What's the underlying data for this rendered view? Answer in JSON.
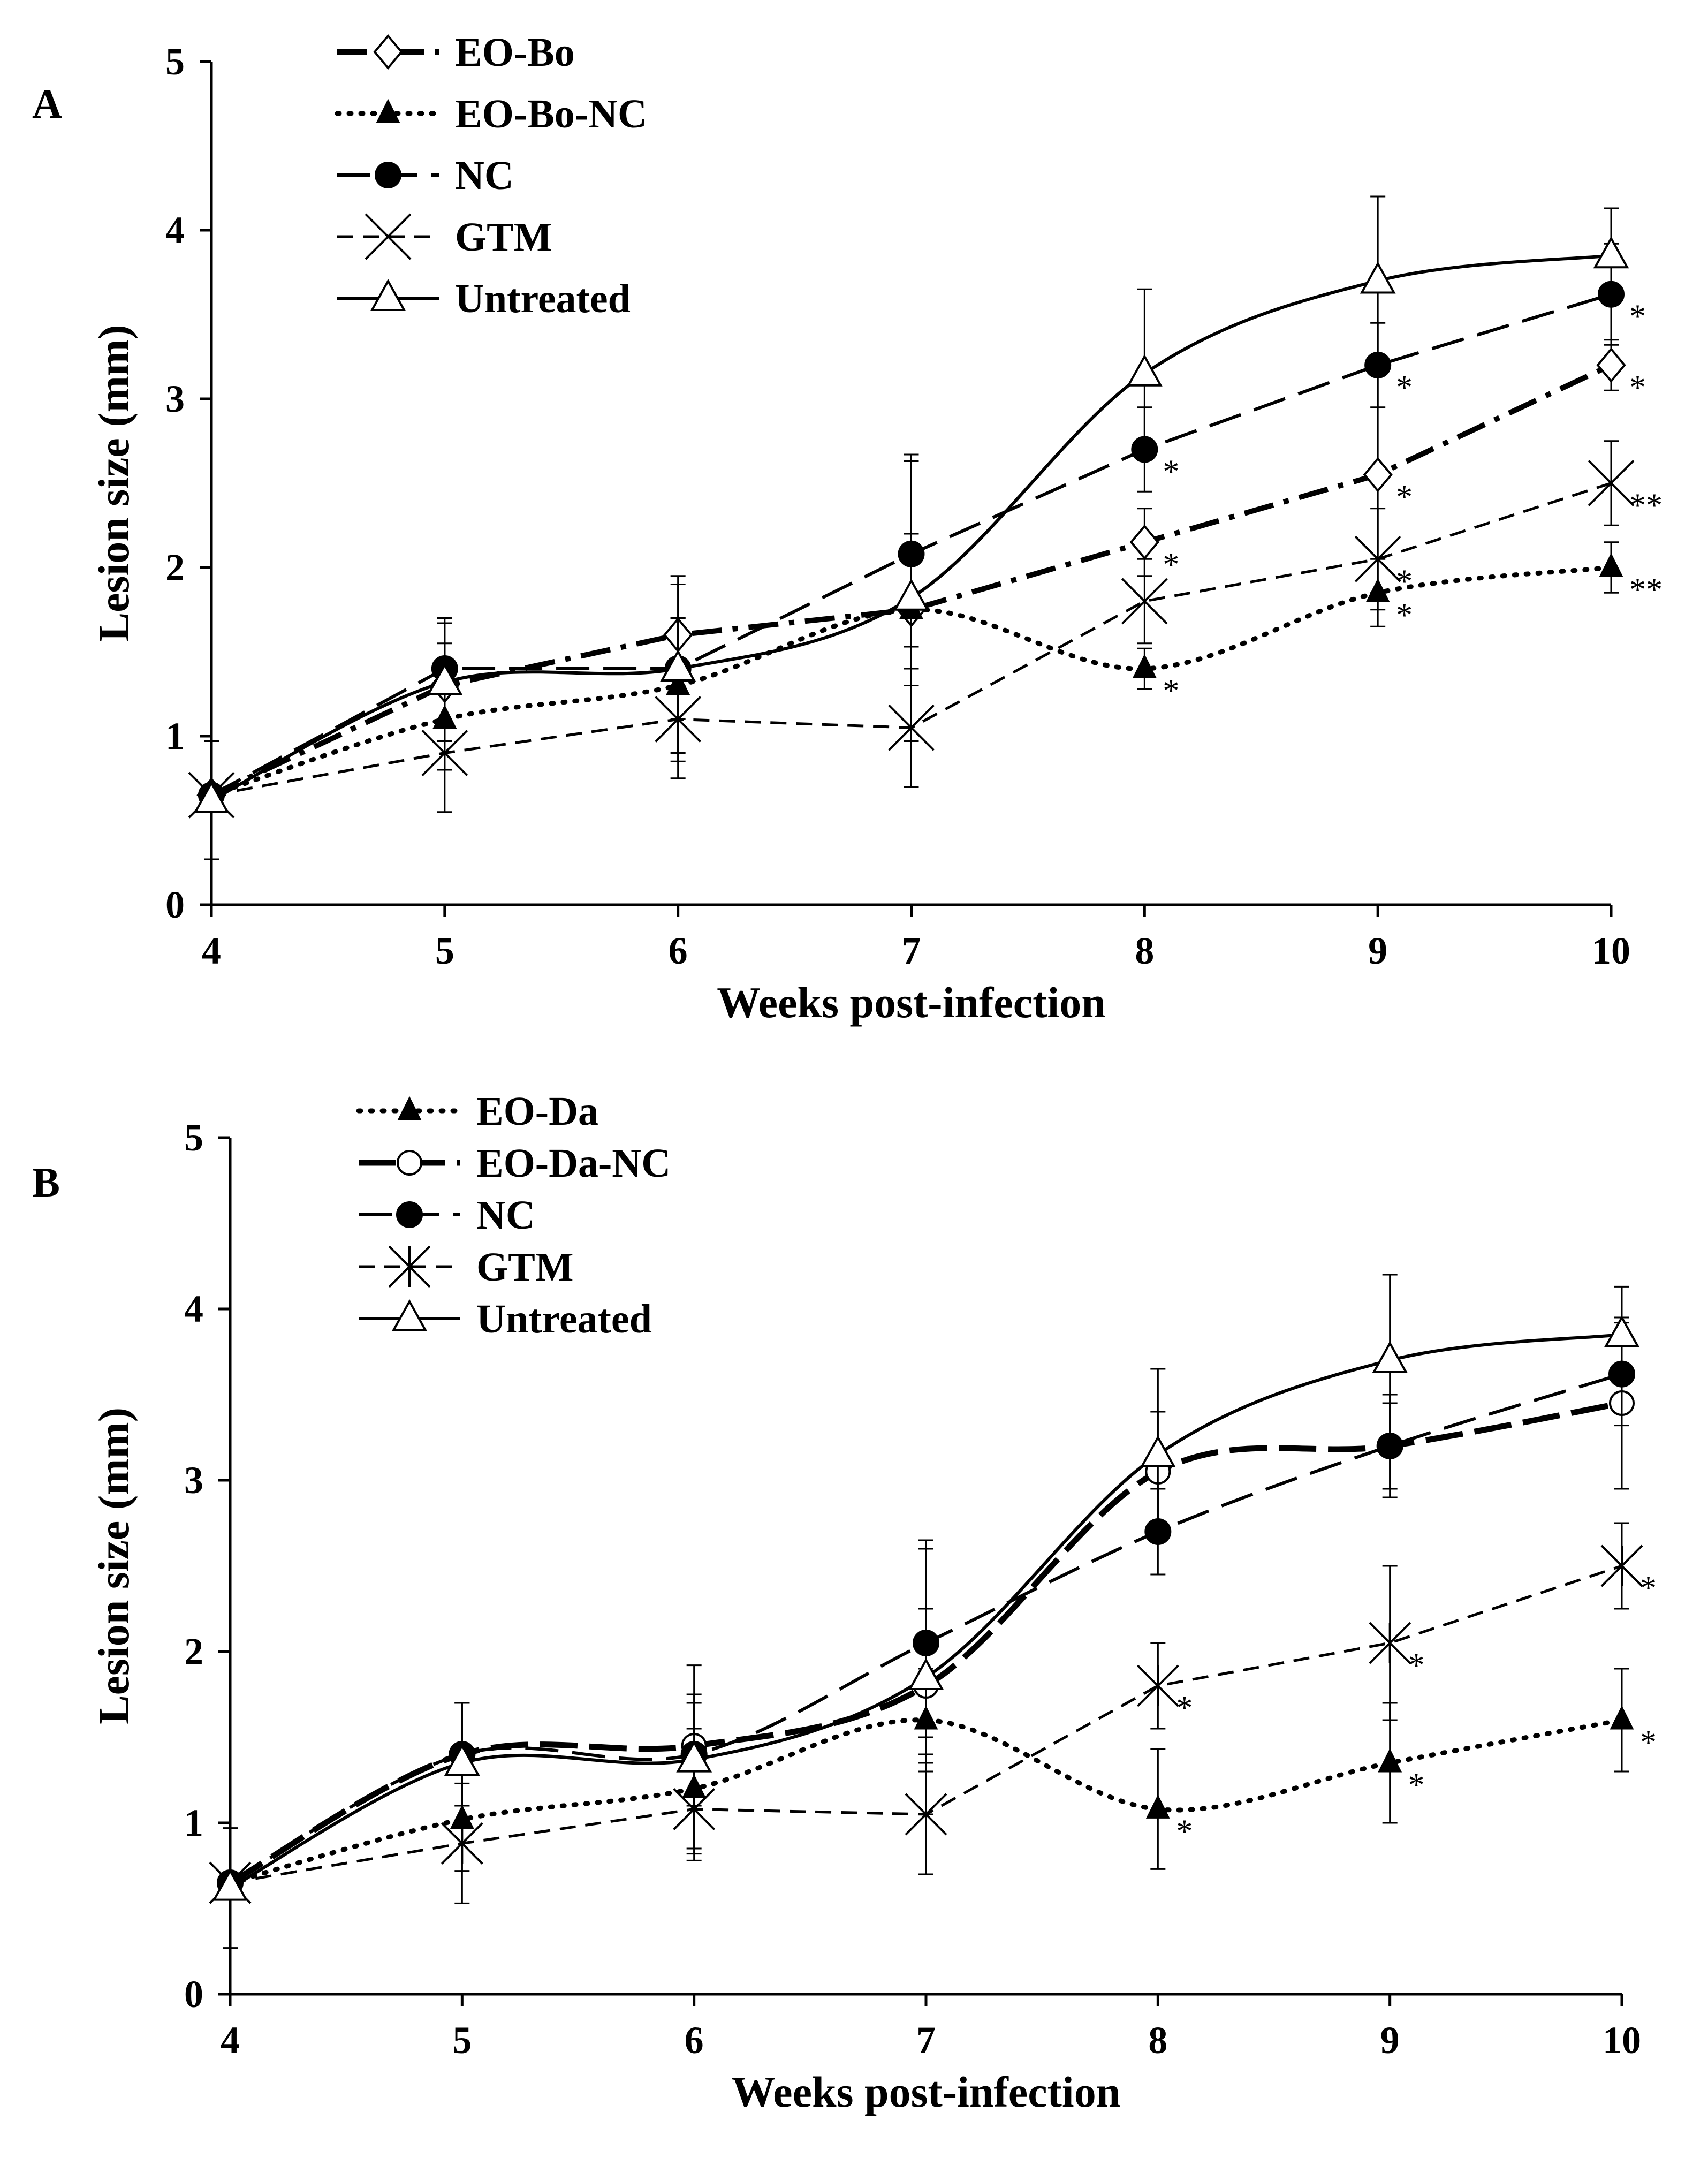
{
  "chart_data": [
    {
      "panel": "A",
      "type": "line",
      "xlabel": "Weeks post-infection",
      "ylabel": "Lesion size (mm)",
      "x": [
        4,
        5,
        6,
        7,
        8,
        9,
        10
      ],
      "xlim": [
        4,
        10
      ],
      "ylim": [
        0,
        5
      ],
      "xticks": [
        "4",
        "5",
        "6",
        "7",
        "8",
        "9",
        "10"
      ],
      "yticks": [
        "0",
        "1",
        "2",
        "3",
        "4",
        "5"
      ],
      "legend_position": "top-left",
      "series": [
        {
          "name": "EO-Bo",
          "marker": "diamond-open",
          "line": "dashdot-thick",
          "smooth": false,
          "values": [
            0.65,
            1.3,
            1.6,
            1.75,
            2.15,
            2.55,
            3.2
          ],
          "errors": [
            0.05,
            0.25,
            0.3,
            0.45,
            0.2,
            0.7,
            0.15
          ],
          "annotations": [
            "",
            "",
            "",
            "",
            "*",
            "*",
            "*"
          ]
        },
        {
          "name": "EO-Bo-NC",
          "marker": "triangle-filled",
          "line": "dotted",
          "smooth": true,
          "values": [
            0.65,
            1.1,
            1.3,
            1.75,
            1.4,
            1.85,
            2.0
          ],
          "errors": [
            0.05,
            0.3,
            0.4,
            0.45,
            0.12,
            0.2,
            0.15
          ],
          "annotations": [
            "",
            "",
            "",
            "",
            "*",
            "*",
            "**"
          ]
        },
        {
          "name": "NC",
          "marker": "circle-filled",
          "line": "longdash",
          "smooth": false,
          "values": [
            0.65,
            1.4,
            1.4,
            2.08,
            2.7,
            3.2,
            3.62
          ],
          "errors": [
            0.05,
            0.3,
            0.3,
            0.55,
            0.25,
            0.25,
            0.3
          ],
          "annotations": [
            "",
            "",
            "",
            "",
            "*",
            "*",
            "*"
          ]
        },
        {
          "name": "GTM",
          "marker": "x",
          "line": "dashed",
          "smooth": false,
          "values": [
            0.65,
            0.9,
            1.1,
            1.05,
            1.8,
            2.05,
            2.5
          ],
          "errors": [
            0.05,
            0.35,
            0.35,
            0.35,
            0.25,
            0.3,
            0.25
          ],
          "annotations": [
            "",
            "",
            "",
            "",
            "",
            "*",
            "**"
          ]
        },
        {
          "name": "Untreated",
          "marker": "triangle-open",
          "line": "solid",
          "smooth": true,
          "values": [
            0.62,
            1.32,
            1.4,
            1.82,
            3.15,
            3.7,
            3.85
          ],
          "errors": [
            0.35,
            0.35,
            0.55,
            0.85,
            0.5,
            0.5,
            0.28
          ],
          "annotations": [
            "",
            "",
            "",
            "",
            "",
            "",
            ""
          ]
        }
      ]
    },
    {
      "panel": "B",
      "type": "line",
      "xlabel": "Weeks  post-infection",
      "ylabel": "Lesion size (mm)",
      "x": [
        4,
        5,
        6,
        7,
        8,
        9,
        10
      ],
      "xlim": [
        4,
        10
      ],
      "ylim": [
        0,
        5
      ],
      "xticks": [
        "4",
        "5",
        "6",
        "7",
        "8",
        "9",
        "10"
      ],
      "yticks": [
        "0",
        "1",
        "2",
        "3",
        "4",
        "5"
      ],
      "legend_position": "top-left",
      "series": [
        {
          "name": "EO-Da",
          "marker": "triangle-filled",
          "line": "dotted",
          "smooth": true,
          "values": [
            0.65,
            1.02,
            1.2,
            1.6,
            1.08,
            1.35,
            1.6
          ],
          "errors": [
            0.05,
            0.3,
            0.35,
            0.3,
            0.35,
            0.35,
            0.3
          ],
          "annotations": [
            "",
            "",
            "",
            "",
            "*",
            "*",
            "*"
          ]
        },
        {
          "name": "EO-Da-NC",
          "marker": "circle-open",
          "line": "longdash-thick",
          "smooth": true,
          "values": [
            0.65,
            1.4,
            1.45,
            1.8,
            3.05,
            3.2,
            3.45
          ],
          "errors": [
            0.05,
            0.3,
            0.3,
            0.45,
            0.35,
            0.25,
            0.5
          ],
          "annotations": [
            "",
            "",
            "",
            "",
            "",
            "",
            ""
          ]
        },
        {
          "name": "NC",
          "marker": "circle-filled",
          "line": "longdash",
          "smooth": true,
          "values": [
            0.65,
            1.4,
            1.4,
            2.05,
            2.7,
            3.2,
            3.62
          ],
          "errors": [
            0.05,
            0.3,
            0.3,
            0.55,
            0.25,
            0.3,
            0.3
          ],
          "annotations": [
            "",
            "",
            "",
            "",
            "",
            "",
            ""
          ]
        },
        {
          "name": "GTM",
          "marker": "star-x",
          "line": "dashed",
          "smooth": false,
          "values": [
            0.65,
            0.88,
            1.08,
            1.05,
            1.8,
            2.05,
            2.5
          ],
          "errors": [
            0.05,
            0.35,
            0.3,
            0.35,
            0.25,
            0.45,
            0.25
          ],
          "annotations": [
            "",
            "",
            "",
            "",
            "*",
            "*",
            "*"
          ]
        },
        {
          "name": "Untreated",
          "marker": "triangle-open",
          "line": "solid",
          "smooth": true,
          "values": [
            0.62,
            1.35,
            1.37,
            1.85,
            3.15,
            3.7,
            3.85
          ],
          "errors": [
            0.35,
            0.35,
            0.55,
            0.8,
            0.5,
            0.5,
            0.28
          ],
          "annotations": [
            "",
            "",
            "",
            "",
            "",
            "",
            ""
          ]
        }
      ]
    }
  ]
}
